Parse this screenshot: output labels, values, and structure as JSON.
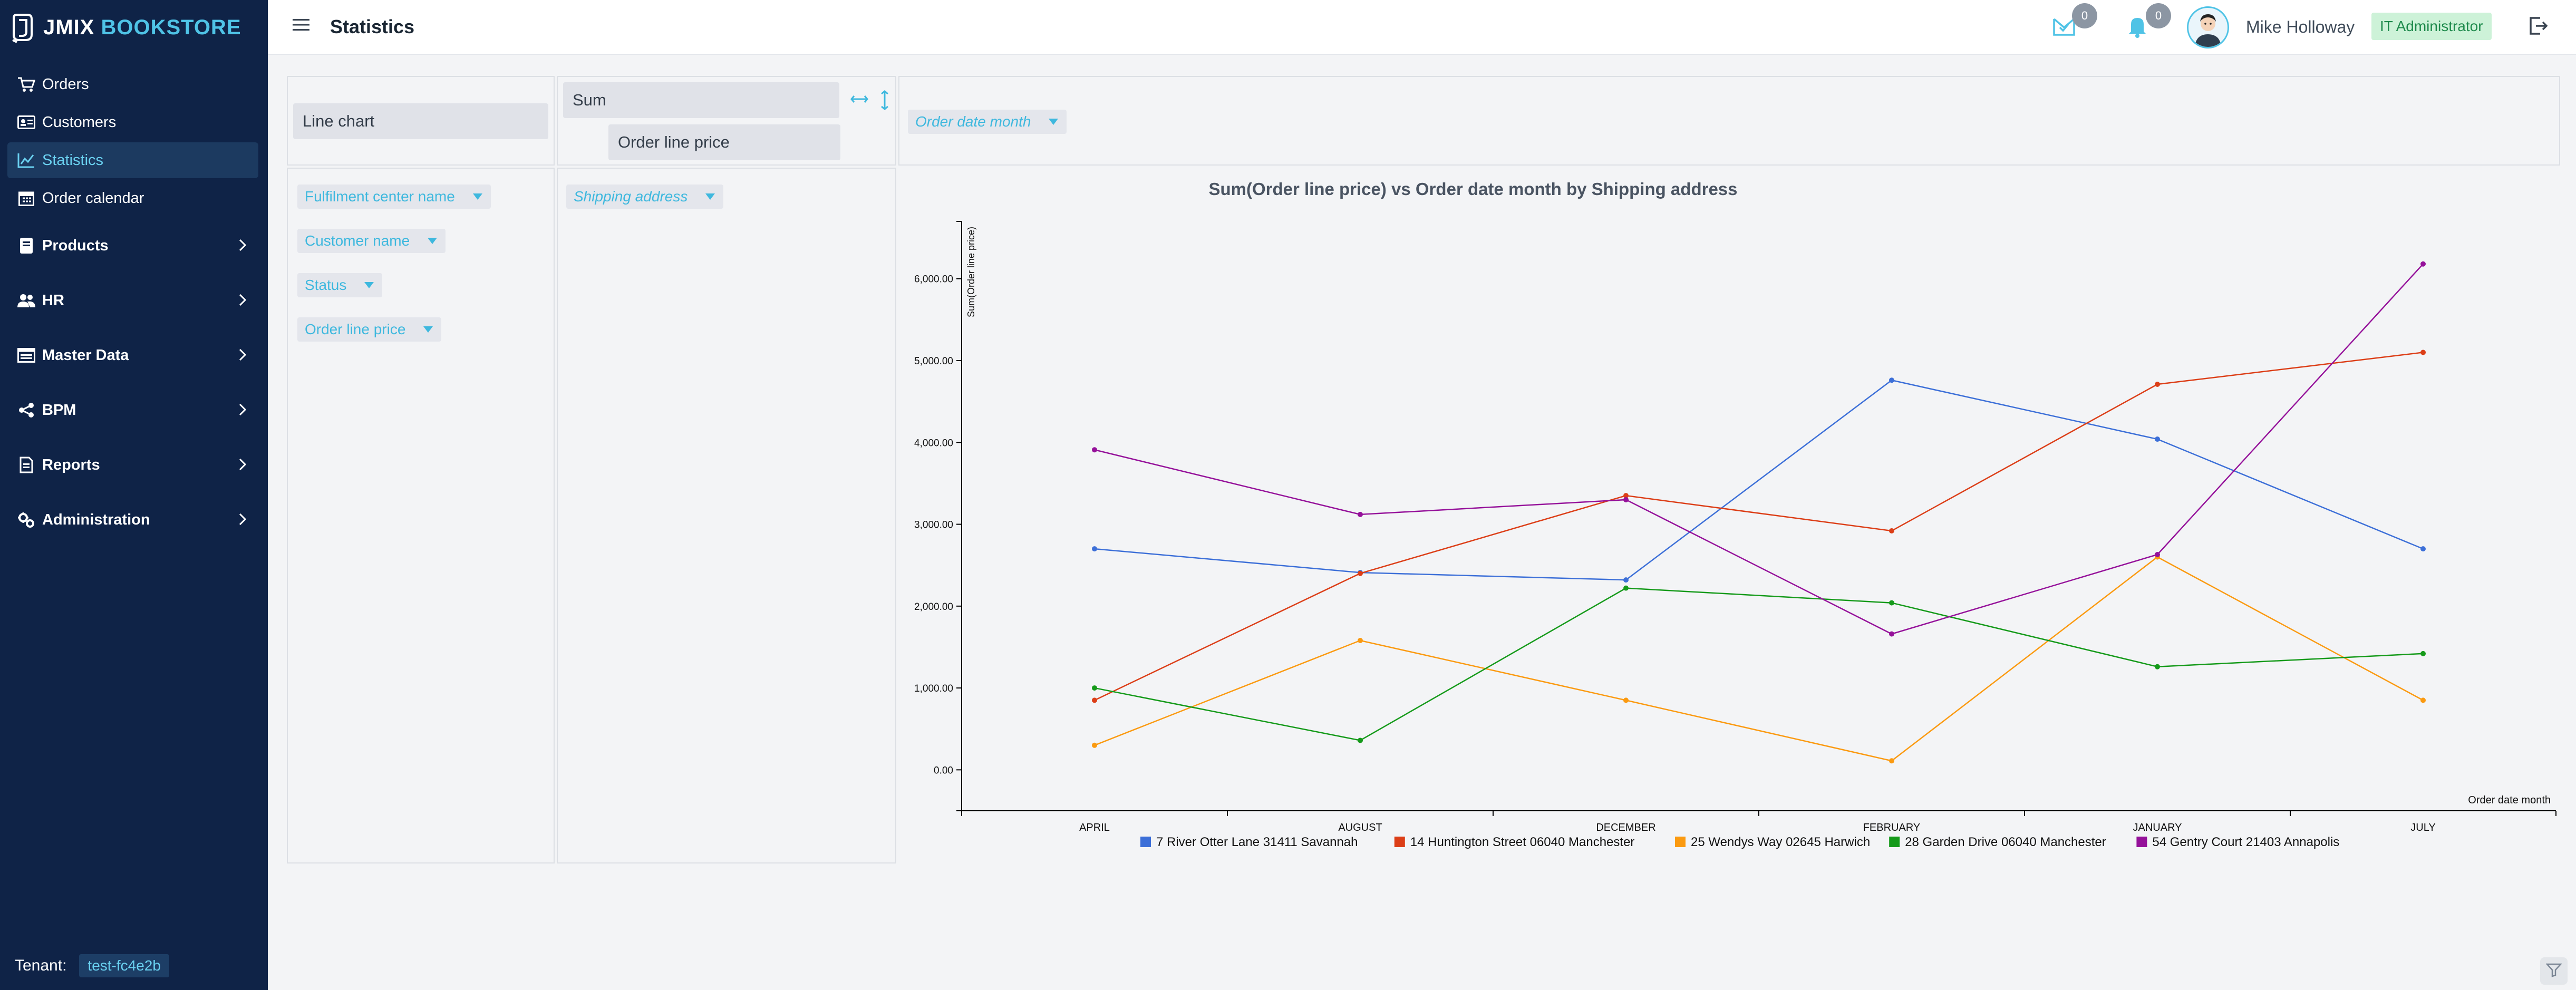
{
  "app": {
    "brand_left": "JMIX",
    "brand_right": "BOOKSTORE",
    "brand_color": "#4fc3e6",
    "sidebar_bg": "#0f2347"
  },
  "sidebar": {
    "items": [
      {
        "label": "Orders",
        "icon": "cart-icon",
        "group": false
      },
      {
        "label": "Customers",
        "icon": "id-card-icon",
        "group": false
      },
      {
        "label": "Statistics",
        "icon": "line-chart-icon",
        "group": false,
        "active": true
      },
      {
        "label": "Order calendar",
        "icon": "calendar-icon",
        "group": false
      },
      {
        "label": "Products",
        "icon": "book-icon",
        "group": true
      },
      {
        "label": "HR",
        "icon": "users-icon",
        "group": true
      },
      {
        "label": "Master Data",
        "icon": "database-icon",
        "group": true
      },
      {
        "label": "BPM",
        "icon": "share-icon",
        "group": true
      },
      {
        "label": "Reports",
        "icon": "report-icon",
        "group": true
      },
      {
        "label": "Administration",
        "icon": "gears-icon",
        "group": true
      }
    ],
    "tenant_label": "Tenant:",
    "tenant_value": "test-fc4e2b"
  },
  "header": {
    "title": "Statistics",
    "inbox_count": "0",
    "notification_count": "0",
    "user_name": "Mike Holloway",
    "role": "IT Administrator"
  },
  "pivot": {
    "renderer": "Line chart",
    "aggregator": "Sum",
    "aggregator_field": "Order line price",
    "column_field": "Order date month",
    "row_field": "Shipping address",
    "unused_fields": [
      "Fulfilment center name",
      "Customer name",
      "Status",
      "Order line price"
    ]
  },
  "chart_data": {
    "type": "line",
    "title": "Sum(Order line price) vs Order date month by Shipping address",
    "xlabel": "Order date month",
    "ylabel": "Sum(Order line price)",
    "categories": [
      "APRIL",
      "AUGUST",
      "DECEMBER",
      "FEBRUARY",
      "JANUARY",
      "JULY"
    ],
    "ylim": [
      -500,
      6700
    ],
    "yticks": [
      0,
      1000,
      2000,
      3000,
      4000,
      5000,
      6000
    ],
    "ytick_labels": [
      "0.00",
      "1,000.00",
      "2,000.00",
      "3,000.00",
      "4,000.00",
      "5,000.00",
      "6,000.00"
    ],
    "legend_position": "bottom",
    "series": [
      {
        "name": "7 River Otter Lane 31411 Savannah",
        "color": "#3c6fd8",
        "values": [
          2700,
          2410,
          2320,
          4760,
          4040,
          2700
        ]
      },
      {
        "name": "14 Huntington Street 06040 Manchester",
        "color": "#dc3e17",
        "values": [
          850,
          2400,
          3350,
          2920,
          4710,
          5100
        ]
      },
      {
        "name": "25 Wendys Way 02645 Harwich",
        "color": "#fb9a10",
        "values": [
          300,
          1580,
          850,
          110,
          2600,
          850
        ]
      },
      {
        "name": "28 Garden Drive 06040 Manchester",
        "color": "#159a1a",
        "values": [
          1000,
          360,
          2220,
          2040,
          1260,
          1420
        ]
      },
      {
        "name": "54 Gentry Court 21403 Annapolis",
        "color": "#95119a",
        "values": [
          3910,
          3120,
          3300,
          1660,
          2630,
          6180
        ]
      }
    ]
  }
}
